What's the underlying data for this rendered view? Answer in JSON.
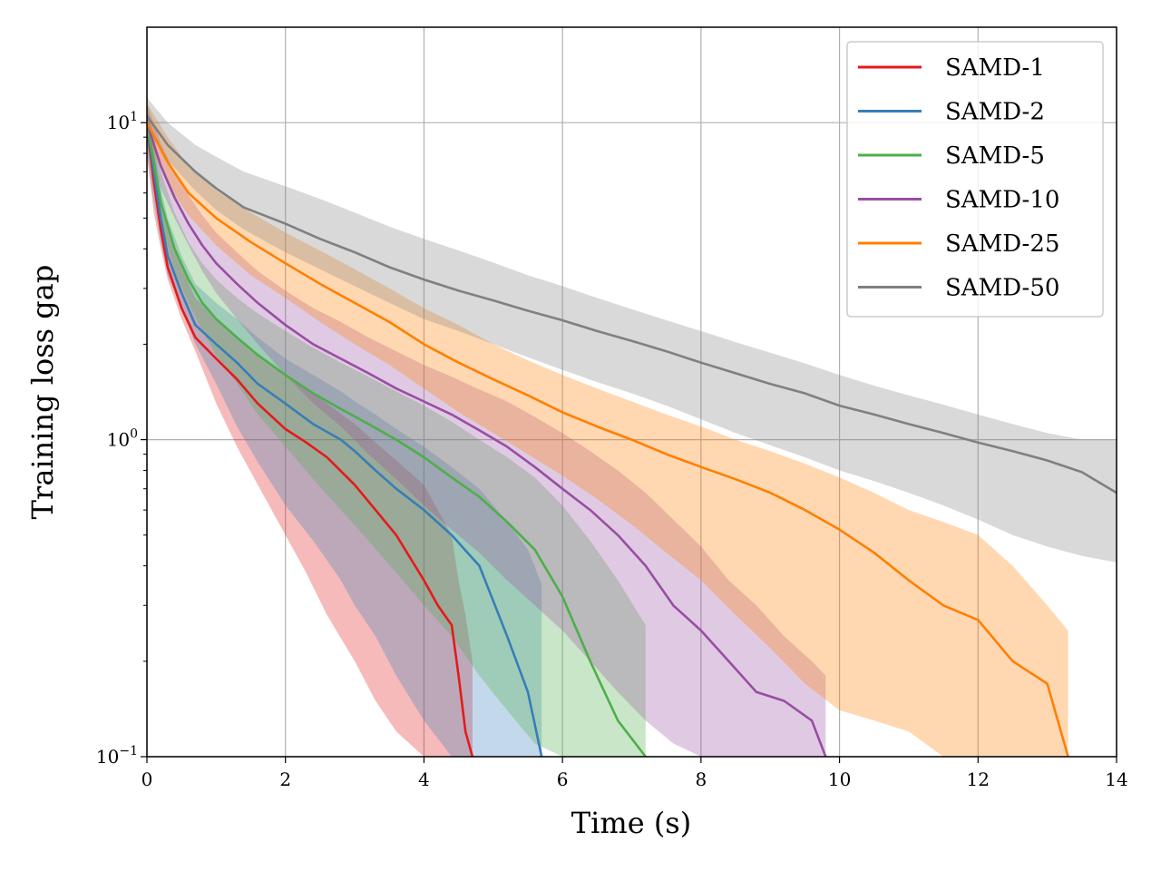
{
  "chart_data": {
    "type": "line",
    "title": "",
    "xlabel": "Time (s)",
    "ylabel": "Training loss gap",
    "xscale": "linear",
    "yscale": "log",
    "xlim": [
      0,
      14
    ],
    "ylim": [
      0.1,
      20
    ],
    "grid": true,
    "legend_position": "top-right",
    "x_ticks": [
      {
        "value": 0,
        "label": "0"
      },
      {
        "value": 2,
        "label": "2"
      },
      {
        "value": 4,
        "label": "4"
      },
      {
        "value": 6,
        "label": "6"
      },
      {
        "value": 8,
        "label": "8"
      },
      {
        "value": 10,
        "label": "10"
      },
      {
        "value": 12,
        "label": "12"
      },
      {
        "value": 14,
        "label": "14"
      }
    ],
    "y_ticks": [
      {
        "value": 0.1,
        "base": "10",
        "exp": "−1"
      },
      {
        "value": 1,
        "base": "10",
        "exp": "0"
      },
      {
        "value": 10,
        "base": "10",
        "exp": "1"
      }
    ],
    "series": [
      {
        "name": "SAMD-1",
        "color": "#e41a1c",
        "x": [
          0,
          0.1,
          0.2,
          0.3,
          0.5,
          0.7,
          1.0,
          1.3,
          1.6,
          2.0,
          2.3,
          2.6,
          3.0,
          3.3,
          3.6,
          4.0,
          4.2,
          4.4,
          4.5,
          4.6,
          4.7
        ],
        "y": [
          10,
          6.5,
          4.6,
          3.5,
          2.6,
          2.1,
          1.8,
          1.55,
          1.3,
          1.08,
          0.98,
          0.88,
          0.72,
          0.6,
          0.5,
          0.36,
          0.3,
          0.26,
          0.18,
          0.12,
          0.1
        ],
        "lower": [
          7.8,
          5.2,
          4.0,
          3.2,
          2.4,
          1.9,
          1.3,
          0.95,
          0.72,
          0.5,
          0.38,
          0.28,
          0.2,
          0.15,
          0.12,
          0.1,
          0.1,
          0.1,
          0.1,
          0.1,
          0.1
        ],
        "upper": [
          11,
          8,
          5.8,
          4.6,
          3.5,
          2.8,
          2.4,
          2.1,
          1.85,
          1.6,
          1.45,
          1.3,
          1.12,
          0.98,
          0.86,
          0.72,
          0.6,
          0.5,
          0.36,
          0.28,
          0.2
        ]
      },
      {
        "name": "SAMD-2",
        "color": "#377eb8",
        "x": [
          0,
          0.1,
          0.2,
          0.3,
          0.5,
          0.7,
          1.0,
          1.3,
          1.6,
          2.0,
          2.4,
          2.8,
          3.0,
          3.3,
          3.6,
          4.0,
          4.4,
          4.8,
          5.2,
          5.5,
          5.7
        ],
        "y": [
          10,
          7,
          5,
          3.8,
          2.9,
          2.3,
          2.0,
          1.75,
          1.5,
          1.3,
          1.12,
          1.0,
          0.92,
          0.8,
          0.7,
          0.6,
          0.5,
          0.4,
          0.24,
          0.16,
          0.1
        ],
        "lower": [
          8,
          5.6,
          4.2,
          3.3,
          2.6,
          2.0,
          1.5,
          1.1,
          0.85,
          0.62,
          0.48,
          0.36,
          0.3,
          0.24,
          0.18,
          0.13,
          0.1,
          0.1,
          0.1,
          0.1,
          0.1
        ],
        "upper": [
          11,
          8.5,
          6.2,
          5.0,
          3.8,
          3.1,
          2.7,
          2.4,
          2.1,
          1.8,
          1.6,
          1.42,
          1.32,
          1.2,
          1.08,
          0.95,
          0.82,
          0.7,
          0.55,
          0.45,
          0.35
        ]
      },
      {
        "name": "SAMD-5",
        "color": "#4daf4a",
        "x": [
          0,
          0.1,
          0.2,
          0.4,
          0.6,
          0.8,
          1.0,
          1.3,
          1.6,
          2.0,
          2.4,
          2.8,
          3.2,
          3.6,
          4.0,
          4.4,
          4.8,
          5.2,
          5.6,
          6.0,
          6.4,
          6.8,
          7.2
        ],
        "y": [
          10,
          7.5,
          5.6,
          4.0,
          3.2,
          2.7,
          2.4,
          2.1,
          1.85,
          1.6,
          1.4,
          1.25,
          1.12,
          1.0,
          0.88,
          0.76,
          0.66,
          0.55,
          0.45,
          0.32,
          0.2,
          0.13,
          0.1
        ],
        "lower": [
          8.5,
          6.2,
          4.8,
          3.4,
          2.7,
          2.2,
          1.85,
          1.5,
          1.2,
          0.95,
          0.75,
          0.6,
          0.48,
          0.38,
          0.3,
          0.24,
          0.18,
          0.14,
          0.11,
          0.1,
          0.1,
          0.1,
          0.1
        ],
        "upper": [
          11.5,
          9,
          7,
          5.2,
          4.2,
          3.6,
          3.2,
          2.8,
          2.5,
          2.2,
          1.95,
          1.75,
          1.58,
          1.42,
          1.28,
          1.14,
          1.0,
          0.88,
          0.76,
          0.62,
          0.48,
          0.36,
          0.26
        ]
      },
      {
        "name": "SAMD-10",
        "color": "#984ea3",
        "x": [
          0,
          0.2,
          0.4,
          0.6,
          0.8,
          1.0,
          1.3,
          1.6,
          2.0,
          2.4,
          2.8,
          3.2,
          3.6,
          4.0,
          4.4,
          4.8,
          5.2,
          5.6,
          6.0,
          6.4,
          6.8,
          7.2,
          7.6,
          8.0,
          8.4,
          8.8,
          9.2,
          9.6,
          9.8
        ],
        "y": [
          10,
          7.3,
          5.8,
          4.8,
          4.1,
          3.6,
          3.1,
          2.7,
          2.3,
          2.0,
          1.8,
          1.62,
          1.45,
          1.32,
          1.2,
          1.07,
          0.95,
          0.82,
          0.7,
          0.6,
          0.5,
          0.4,
          0.3,
          0.25,
          0.2,
          0.16,
          0.15,
          0.13,
          0.1
        ],
        "lower": [
          8.5,
          6.2,
          5.0,
          4.1,
          3.4,
          2.9,
          2.4,
          2.0,
          1.6,
          1.3,
          1.1,
          0.9,
          0.75,
          0.62,
          0.52,
          0.44,
          0.36,
          0.3,
          0.25,
          0.2,
          0.16,
          0.13,
          0.11,
          0.1,
          0.1,
          0.1,
          0.1,
          0.1,
          0.1
        ],
        "upper": [
          11.5,
          8.6,
          7.0,
          5.9,
          5.1,
          4.5,
          3.9,
          3.4,
          2.95,
          2.6,
          2.35,
          2.1,
          1.9,
          1.72,
          1.58,
          1.44,
          1.32,
          1.18,
          1.05,
          0.92,
          0.8,
          0.68,
          0.56,
          0.46,
          0.36,
          0.3,
          0.24,
          0.2,
          0.18
        ]
      },
      {
        "name": "SAMD-25",
        "color": "#ff7f00",
        "x": [
          0,
          0.3,
          0.6,
          1.0,
          1.5,
          2.0,
          2.5,
          3.0,
          3.5,
          4.0,
          4.5,
          5.0,
          5.5,
          6.0,
          6.5,
          7.0,
          7.5,
          8.0,
          8.5,
          9.0,
          9.5,
          10.0,
          10.5,
          11.0,
          11.5,
          12.0,
          12.5,
          13.0,
          13.3
        ],
        "y": [
          10,
          7.5,
          6.0,
          5.0,
          4.2,
          3.6,
          3.1,
          2.7,
          2.35,
          2.0,
          1.75,
          1.55,
          1.38,
          1.22,
          1.1,
          1.0,
          0.9,
          0.82,
          0.75,
          0.68,
          0.6,
          0.52,
          0.44,
          0.36,
          0.3,
          0.27,
          0.2,
          0.17,
          0.1
        ],
        "lower": [
          9,
          6.4,
          5.1,
          4.1,
          3.3,
          2.8,
          2.35,
          2.0,
          1.72,
          1.45,
          1.22,
          1.05,
          0.9,
          0.77,
          0.65,
          0.54,
          0.44,
          0.36,
          0.28,
          0.22,
          0.17,
          0.14,
          0.13,
          0.12,
          0.1,
          0.1,
          0.1,
          0.1,
          0.1
        ],
        "upper": [
          11.5,
          9.0,
          7.3,
          6.1,
          5.2,
          4.5,
          3.95,
          3.45,
          3.0,
          2.6,
          2.3,
          2.0,
          1.78,
          1.6,
          1.45,
          1.32,
          1.2,
          1.1,
          1.0,
          0.92,
          0.84,
          0.76,
          0.68,
          0.6,
          0.55,
          0.5,
          0.4,
          0.3,
          0.25
        ]
      },
      {
        "name": "SAMD-50",
        "color": "#808080",
        "x": [
          0,
          0.3,
          0.7,
          1.0,
          1.4,
          2.0,
          2.5,
          3.0,
          3.5,
          4.0,
          4.5,
          5.0,
          5.5,
          6.0,
          6.5,
          7.0,
          7.5,
          8.0,
          8.5,
          9.0,
          9.5,
          10.0,
          10.5,
          11.0,
          11.5,
          12.0,
          12.5,
          13.0,
          13.5,
          14.0
        ],
        "y": [
          10.5,
          8.5,
          7.0,
          6.2,
          5.4,
          4.8,
          4.3,
          3.9,
          3.5,
          3.2,
          2.95,
          2.75,
          2.55,
          2.38,
          2.2,
          2.05,
          1.9,
          1.75,
          1.62,
          1.5,
          1.4,
          1.28,
          1.2,
          1.12,
          1.05,
          0.98,
          0.92,
          0.86,
          0.79,
          0.68
        ],
        "lower": [
          9.5,
          7.6,
          6.1,
          5.3,
          4.6,
          3.9,
          3.45,
          3.05,
          2.7,
          2.4,
          2.2,
          2.0,
          1.82,
          1.66,
          1.52,
          1.4,
          1.28,
          1.16,
          1.05,
          0.96,
          0.88,
          0.8,
          0.74,
          0.68,
          0.62,
          0.56,
          0.5,
          0.46,
          0.43,
          0.41
        ],
        "upper": [
          12,
          10,
          8.5,
          7.8,
          7.0,
          6.3,
          5.75,
          5.2,
          4.7,
          4.3,
          3.95,
          3.62,
          3.3,
          3.05,
          2.8,
          2.58,
          2.38,
          2.2,
          2.03,
          1.88,
          1.74,
          1.6,
          1.48,
          1.38,
          1.29,
          1.2,
          1.12,
          1.05,
          1.0,
          1.0
        ]
      }
    ]
  }
}
